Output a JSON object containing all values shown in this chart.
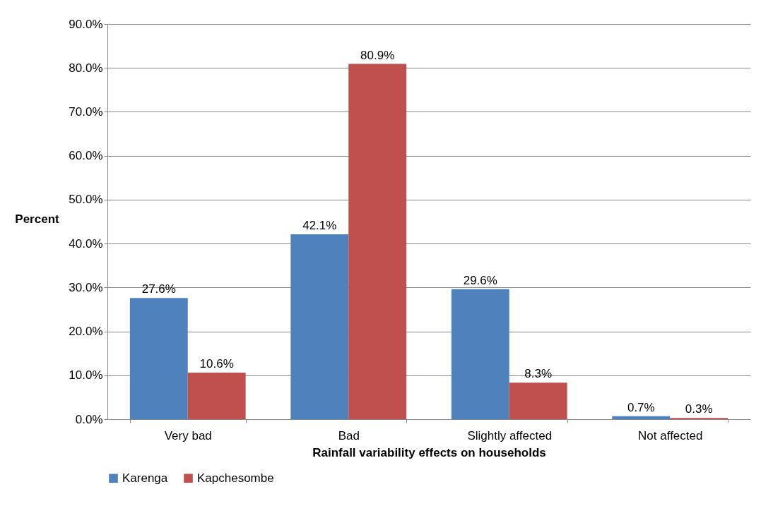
{
  "chart_data": {
    "type": "bar",
    "xlabel": "Rainfall variability effects on households",
    "ylabel": "Percent",
    "categories": [
      "Very bad",
      "Bad",
      "Slightly affected",
      "Not affected"
    ],
    "series": [
      {
        "name": "Karenga",
        "color": "#4f81bd",
        "values": [
          27.6,
          42.1,
          29.6,
          0.7
        ],
        "value_labels": [
          "27.6%",
          "42.1%",
          "29.6%",
          "0.7%"
        ]
      },
      {
        "name": "Kapchesombe",
        "color": "#c0504d",
        "values": [
          10.6,
          80.9,
          8.3,
          0.3
        ],
        "value_labels": [
          "10.6%",
          "80.9%",
          "8.3%",
          "0.3%"
        ]
      }
    ],
    "ylim": [
      0,
      90
    ],
    "yticks": [
      {
        "value": 0,
        "label": "0.0%"
      },
      {
        "value": 10,
        "label": "10.0%"
      },
      {
        "value": 20,
        "label": "20.0%"
      },
      {
        "value": 30,
        "label": "30.0%"
      },
      {
        "value": 40,
        "label": "40.0%"
      },
      {
        "value": 50,
        "label": "50.0%"
      },
      {
        "value": 60,
        "label": "60.0%"
      },
      {
        "value": 70,
        "label": "70.0%"
      },
      {
        "value": 80,
        "label": "80.0%"
      },
      {
        "value": 90,
        "label": "90.0%"
      }
    ],
    "grid": "y",
    "legend": "bottom"
  }
}
